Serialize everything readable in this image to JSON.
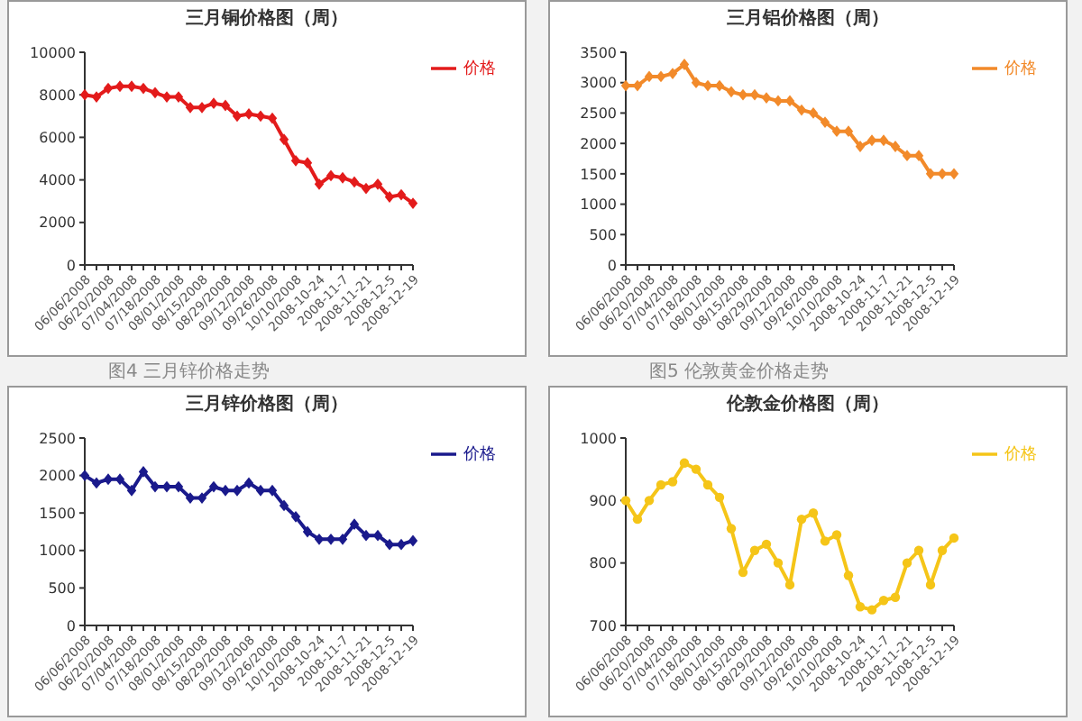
{
  "chart_data": [
    {
      "type": "line",
      "title": "三月铜价格图（周）",
      "categories": [
        "06/06/2008",
        null,
        "06/20/2008",
        null,
        "07/04/2008",
        null,
        "07/18/2008",
        null,
        "08/01/2008",
        null,
        "08/15/2008",
        null,
        "08/29/2008",
        null,
        "09/12/2008",
        null,
        "09/26/2008",
        null,
        "10/10/2008",
        null,
        "2008-10-24",
        null,
        "2008-11-7",
        null,
        "2008-11-21",
        null,
        "2008-12-5",
        null,
        "2008-12-19"
      ],
      "series": [
        {
          "name": "价格",
          "color": "#e31b1b",
          "values": [
            8000,
            7900,
            8300,
            8400,
            8400,
            8300,
            8100,
            7900,
            7900,
            7400,
            7400,
            7600,
            7500,
            7000,
            7100,
            7000,
            6900,
            5900,
            4900,
            4800,
            3800,
            4200,
            4100,
            3900,
            3600,
            3800,
            3200,
            3300,
            2900
          ]
        }
      ],
      "ylim": [
        0,
        10000
      ],
      "yticks": [
        0,
        2000,
        4000,
        6000,
        8000,
        10000
      ],
      "legend": "top right",
      "marker": "diamond"
    },
    {
      "type": "line",
      "title": "三月铝价格图（周）",
      "categories": [
        "06/06/2008",
        null,
        "06/20/2008",
        null,
        "07/04/2008",
        null,
        "07/18/2008",
        null,
        "08/01/2008",
        null,
        "08/15/2008",
        null,
        "08/29/2008",
        null,
        "09/12/2008",
        null,
        "09/26/2008",
        null,
        "10/10/2008",
        null,
        "2008-10-24",
        null,
        "2008-11-7",
        null,
        "2008-11-21",
        null,
        "2008-12-5",
        null,
        "2008-12-19"
      ],
      "series": [
        {
          "name": "价格",
          "color": "#f28a2a",
          "values": [
            2950,
            2950,
            3100,
            3100,
            3150,
            3300,
            3000,
            2950,
            2950,
            2850,
            2800,
            2800,
            2750,
            2700,
            2700,
            2550,
            2500,
            2350,
            2200,
            2200,
            1950,
            2050,
            2050,
            1950,
            1800,
            1800,
            1500,
            1500,
            1500
          ]
        }
      ],
      "ylim": [
        0,
        3500
      ],
      "yticks": [
        0,
        500,
        1000,
        1500,
        2000,
        2500,
        3000,
        3500
      ],
      "legend": "top right",
      "marker": "diamond"
    },
    {
      "type": "line",
      "title": "三月锌价格图（周）",
      "annotations": [
        "图4 三月锌价格走势"
      ],
      "categories": [
        "06/06/2008",
        null,
        "06/20/2008",
        null,
        "07/04/2008",
        null,
        "07/18/2008",
        null,
        "08/01/2008",
        null,
        "08/15/2008",
        null,
        "08/29/2008",
        null,
        "09/12/2008",
        null,
        "09/26/2008",
        null,
        "10/10/2008",
        null,
        "2008-10-24",
        null,
        "2008-11-7",
        null,
        "2008-11-21",
        null,
        "2008-12-5",
        null,
        "2008-12-19"
      ],
      "series": [
        {
          "name": "价格",
          "color": "#1a1a8c",
          "values": [
            2000,
            1900,
            1950,
            1950,
            1800,
            2050,
            1850,
            1850,
            1850,
            1700,
            1700,
            1850,
            1800,
            1800,
            1900,
            1800,
            1800,
            1600,
            1450,
            1250,
            1150,
            1150,
            1150,
            1350,
            1200,
            1200,
            1080,
            1080,
            1130
          ]
        }
      ],
      "ylim": [
        0,
        2500
      ],
      "yticks": [
        0,
        500,
        1000,
        1500,
        2000,
        2500
      ],
      "legend": "top right",
      "marker": "diamond"
    },
    {
      "type": "line",
      "title": "伦敦金价格图（周）",
      "annotations": [
        "图5 伦敦黄金价格走势"
      ],
      "categories": [
        "06/06/2008",
        null,
        "06/20/2008",
        null,
        "07/04/2008",
        null,
        "07/18/2008",
        null,
        "08/01/2008",
        null,
        "08/15/2008",
        null,
        "08/29/2008",
        null,
        "09/12/2008",
        null,
        "09/26/2008",
        null,
        "10/10/2008",
        null,
        "2008-10-24",
        null,
        "2008-11-7",
        null,
        "2008-11-21",
        null,
        "2008-12-5",
        null,
        "2008-12-19"
      ],
      "series": [
        {
          "name": "价格",
          "color": "#f5c518",
          "values": [
            900,
            870,
            900,
            925,
            930,
            960,
            950,
            925,
            905,
            855,
            785,
            820,
            830,
            800,
            765,
            870,
            880,
            835,
            845,
            780,
            730,
            725,
            740,
            745,
            800,
            820,
            765,
            820,
            840
          ]
        }
      ],
      "ylim": [
        700,
        1000
      ],
      "yticks": [
        700,
        800,
        900,
        1000
      ],
      "legend": "top right",
      "marker": "circle"
    }
  ]
}
